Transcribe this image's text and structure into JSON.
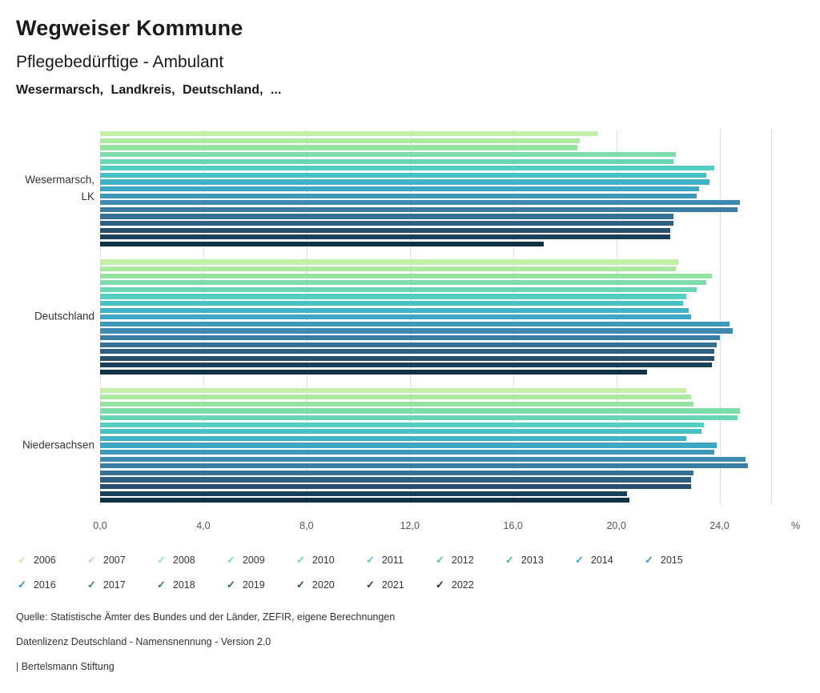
{
  "header": {
    "title": "Wegweiser Kommune",
    "subtitle": "Pflegebedürftige - Ambulant",
    "regions_line": "Wesermarsch, Landkreis, Deutschland, ..."
  },
  "chart_data": {
    "type": "bar",
    "orientation": "horizontal",
    "title": "Pflegebedürftige - Ambulant",
    "unit": "%",
    "grid": true,
    "legend_position": "bottom",
    "xmax": 26,
    "gridlines": [
      0,
      4,
      8,
      12,
      16,
      20,
      24,
      26
    ],
    "x_ticks": [
      {
        "value": 0,
        "label": "0,0"
      },
      {
        "value": 4,
        "label": "4,0"
      },
      {
        "value": 8,
        "label": "8,0"
      },
      {
        "value": 12,
        "label": "12,0"
      },
      {
        "value": 16,
        "label": "16,0"
      },
      {
        "value": 20,
        "label": "20,0"
      },
      {
        "value": 24,
        "label": "24,0"
      }
    ],
    "categories": [
      {
        "name": "Wesermarsch, LK",
        "label_lines": [
          "Wesermarsch,",
          "LK"
        ]
      },
      {
        "name": "Deutschland",
        "label_lines": [
          "Deutschland"
        ]
      },
      {
        "name": "Niedersachsen",
        "label_lines": [
          "Niedersachsen"
        ]
      }
    ],
    "series": [
      {
        "name": "2006",
        "color": "#c3f0a8",
        "values": [
          19.3,
          22.4,
          22.7
        ]
      },
      {
        "name": "2007",
        "color": "#abeaa0",
        "values": [
          18.6,
          22.3,
          22.9
        ]
      },
      {
        "name": "2008",
        "color": "#93e4a1",
        "values": [
          18.5,
          23.7,
          23.0
        ]
      },
      {
        "name": "2009",
        "color": "#7cddaa",
        "values": [
          22.3,
          23.5,
          24.8
        ]
      },
      {
        "name": "2010",
        "color": "#66d6b5",
        "values": [
          22.2,
          23.1,
          24.7
        ]
      },
      {
        "name": "2011",
        "color": "#53cec0",
        "values": [
          23.8,
          22.7,
          23.4
        ]
      },
      {
        "name": "2012",
        "color": "#46c2c7",
        "values": [
          23.5,
          22.6,
          23.3
        ]
      },
      {
        "name": "2013",
        "color": "#3fb4c7",
        "values": [
          23.6,
          22.8,
          22.7
        ]
      },
      {
        "name": "2014",
        "color": "#3ca6c4",
        "values": [
          23.2,
          22.9,
          23.9
        ]
      },
      {
        "name": "2015",
        "color": "#3d98bc",
        "values": [
          23.1,
          24.4,
          23.8
        ]
      },
      {
        "name": "2016",
        "color": "#3e8ab1",
        "values": [
          24.8,
          24.5,
          25.0
        ]
      },
      {
        "name": "2017",
        "color": "#3c7ba3",
        "values": [
          24.7,
          24.0,
          25.1
        ]
      },
      {
        "name": "2018",
        "color": "#377092",
        "values": [
          22.2,
          23.9,
          23.0
        ]
      },
      {
        "name": "2019",
        "color": "#2f5f80",
        "values": [
          22.2,
          23.8,
          22.9
        ]
      },
      {
        "name": "2020",
        "color": "#254f6c",
        "values": [
          22.1,
          23.8,
          22.9
        ]
      },
      {
        "name": "2021",
        "color": "#1a3f58",
        "values": [
          22.1,
          23.7,
          20.4
        ]
      },
      {
        "name": "2022",
        "color": "#103043",
        "values": [
          17.2,
          21.2,
          20.5
        ]
      }
    ]
  },
  "legend": {
    "check_glyph": "✓",
    "rows": [
      [
        "2006",
        "2007",
        "2008",
        "2009",
        "2010",
        "2011",
        "2012",
        "2013",
        "2014",
        "2015"
      ],
      [
        "2016",
        "2017",
        "2018",
        "2019",
        "2020",
        "2021",
        "2022"
      ]
    ]
  },
  "footer": {
    "source": "Quelle: Statistische Ämter des Bundes und der Länder, ZEFIR, eigene Berechnungen",
    "license": "Datenlizenz Deutschland - Namensnennung - Version 2.0",
    "brand": "| Bertelsmann Stiftung"
  }
}
